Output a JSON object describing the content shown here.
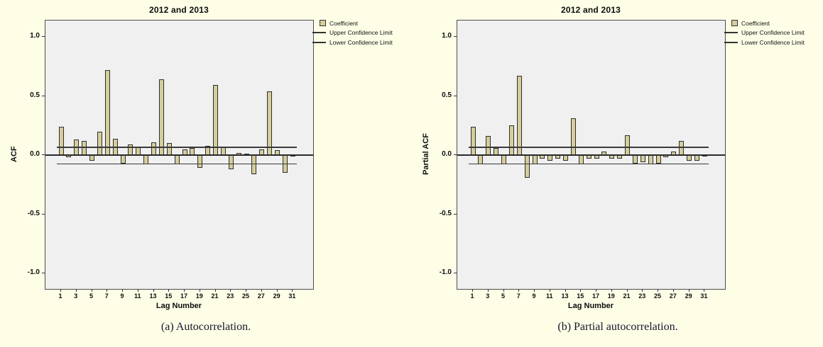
{
  "page": {
    "background_color": "#FEFEE7",
    "plot_background_color": "#F0F0F0",
    "bar_color": "#D5CE9B",
    "bar_border_color": "#2e2e2e",
    "line_color": "#333333"
  },
  "chart_data": [
    {
      "type": "bar",
      "panel": "a",
      "title": "2012 and 2013",
      "xlabel": "Lag Number",
      "ylabel": "ACF",
      "caption": "(a) Autocorrelation.",
      "legend": [
        "Coefficient",
        "Upper Confidence Limit",
        "Lower Confidence Limit"
      ],
      "legend_position": "top-right-outside",
      "series_name": "Coefficient",
      "x": [
        1,
        2,
        3,
        4,
        5,
        6,
        7,
        8,
        9,
        10,
        11,
        12,
        13,
        14,
        15,
        16,
        17,
        18,
        19,
        20,
        21,
        22,
        23,
        24,
        25,
        26,
        27,
        28,
        29,
        30,
        31
      ],
      "values": [
        0.24,
        -0.02,
        0.13,
        0.12,
        -0.05,
        0.2,
        0.72,
        0.14,
        -0.07,
        0.09,
        0.07,
        -0.08,
        0.11,
        0.64,
        0.1,
        -0.08,
        0.05,
        0.06,
        -0.11,
        0.08,
        0.59,
        0.07,
        -0.12,
        0.02,
        0.01,
        -0.16,
        0.05,
        0.54,
        0.04,
        -0.15,
        -0.01
      ],
      "upper_confidence_limit": 0.07,
      "lower_confidence_limit": -0.07,
      "ylim": [
        -1.13,
        1.14
      ],
      "yticks": [
        "1.0",
        "0.5",
        "0.0",
        "-0.5",
        "-1.0"
      ],
      "ytick_values": [
        1.0,
        0.5,
        0.0,
        -0.5,
        -1.0
      ],
      "xticks": [
        1,
        3,
        5,
        7,
        9,
        11,
        13,
        15,
        17,
        19,
        21,
        23,
        25,
        27,
        29,
        31
      ],
      "grid": false,
      "bar_color": "#D5CE9B"
    },
    {
      "type": "bar",
      "panel": "b",
      "title": "2012 and 2013",
      "xlabel": "Lag Number",
      "ylabel": "Partial ACF",
      "caption": "(b) Partial autocorrelation.",
      "legend": [
        "Coefficient",
        "Upper Confidence Limit",
        "Lower Confidence Limit"
      ],
      "legend_position": "top-right-outside",
      "series_name": "Coefficient",
      "x": [
        1,
        2,
        3,
        4,
        5,
        6,
        7,
        8,
        9,
        10,
        11,
        12,
        13,
        14,
        15,
        16,
        17,
        18,
        19,
        20,
        21,
        22,
        23,
        24,
        25,
        26,
        27,
        28,
        29,
        30,
        31
      ],
      "values": [
        0.24,
        -0.08,
        0.16,
        0.06,
        -0.08,
        0.25,
        0.67,
        -0.19,
        -0.08,
        -0.03,
        -0.05,
        -0.03,
        -0.05,
        0.31,
        -0.08,
        -0.03,
        -0.03,
        0.03,
        -0.03,
        -0.03,
        0.17,
        -0.07,
        -0.06,
        -0.08,
        -0.07,
        -0.02,
        0.03,
        0.12,
        -0.05,
        -0.05,
        -0.01
      ],
      "upper_confidence_limit": 0.07,
      "lower_confidence_limit": -0.07,
      "ylim": [
        -1.13,
        1.14
      ],
      "yticks": [
        "1.0",
        "0.5",
        "0.0",
        "-0.5",
        "-1.0"
      ],
      "ytick_values": [
        1.0,
        0.5,
        0.0,
        -0.5,
        -1.0
      ],
      "xticks": [
        1,
        3,
        5,
        7,
        9,
        11,
        13,
        15,
        17,
        19,
        21,
        23,
        25,
        27,
        29,
        31
      ],
      "grid": false,
      "bar_color": "#D5CE9B"
    }
  ]
}
